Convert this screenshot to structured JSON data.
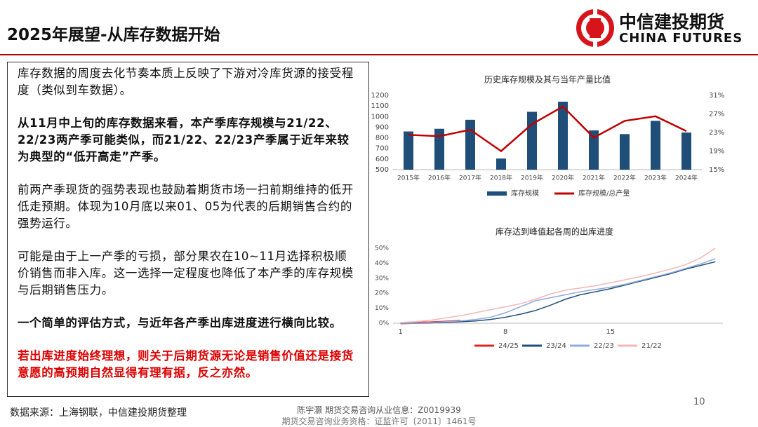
{
  "header": {
    "title": "2025年展望-从库存数据开始",
    "logo_cn": "中信建投期货",
    "logo_en": "CHINA FUTURES"
  },
  "paragraphs": [
    "库存数据的周度去化节奏本质上反映了下游对冷库货源的接受程度（类似到车数据）。",
    "从11月中上旬的库存数据来看，本产季库存规模与21/22、22/23两产季可能类似，而21/22、22/23产季属于近年来较为典型的“低开高走”产季。",
    "前两产季现货的强势表现也鼓励着期货市场一扫前期维持的低开低走预期。体现为10月底以来01、05为代表的后期销售合约的强势运行。",
    "可能是由于上一产季的亏损，部分果农在10~11月选择积极顺价销售而非入库。这一选择一定程度也降低了本产季的库存规模与后期销售压力。",
    "一个简单的评估方式，与近年各产季出库进度进行横向比较。",
    "若出库进度始终理想，则关于后期货源无论是销售价值还是接货意愿的高预期自然显得有理有据，反之亦然。"
  ],
  "charts": [
    {
      "type": "bar_line",
      "title": "历史库存规模及其与当年产量比值",
      "categories": [
        "2015年",
        "2016年",
        "2017年",
        "2018年",
        "2019年",
        "2020年",
        "2021年",
        "2022年",
        "2023年",
        "2024年"
      ],
      "series": [
        {
          "name": "库存规模",
          "color": "#1f4e79",
          "values": [
            860,
            885,
            970,
            605,
            1045,
            1140,
            870,
            835,
            960,
            850
          ]
        },
        {
          "name": "库存规模/总产量",
          "color": "#c00000",
          "axis": "y2",
          "values": [
            22.5,
            22.2,
            23.6,
            19.0,
            24.8,
            28.6,
            21.9,
            25.5,
            26.5,
            23.3
          ]
        }
      ],
      "ylim": [
        500,
        1200
      ],
      "yticks": [
        500,
        600,
        700,
        800,
        900,
        1000,
        1100,
        1200
      ],
      "y2lim": [
        15,
        31
      ],
      "y2ticks": [
        {
          "value": 15,
          "label": "15%"
        },
        {
          "value": 19,
          "label": "19%"
        },
        {
          "value": 23,
          "label": "23%"
        },
        {
          "value": 27,
          "label": "27%"
        },
        {
          "value": 31,
          "label": "31%"
        }
      ]
    },
    {
      "type": "line",
      "title": "库存达到峰值起各周的出库进度",
      "x": [
        1,
        2,
        3,
        4,
        5,
        6,
        7,
        8,
        9,
        10,
        11,
        12,
        13,
        14,
        15,
        16,
        17,
        18,
        19,
        20,
        21,
        22
      ],
      "series": [
        {
          "name": "24/25",
          "color": "#e0242b",
          "values": [
            0,
            0.3,
            0.5,
            1,
            1.5,
            null,
            null,
            null,
            null,
            null,
            null,
            null,
            null,
            null,
            null,
            null,
            null,
            null,
            null,
            null,
            null,
            null
          ]
        },
        {
          "name": "23/24",
          "color": "#1f4e79",
          "values": [
            0,
            0,
            0.3,
            0.6,
            1,
            1.5,
            2.5,
            4,
            6,
            8.5,
            12,
            16,
            19,
            21,
            23,
            25.5,
            28,
            30.5,
            33,
            36,
            38.5,
            41
          ]
        },
        {
          "name": "22/23",
          "color": "#8faadc",
          "values": [
            0,
            0,
            0.5,
            1,
            1.5,
            2.5,
            4,
            7,
            11,
            15,
            17,
            19,
            21,
            22.5,
            24,
            26,
            28.5,
            31,
            33.5,
            36.5,
            39.5,
            43
          ]
        },
        {
          "name": "21/22",
          "color": "#f4b6b6",
          "values": [
            0.5,
            1,
            2,
            3.5,
            5,
            7,
            9,
            11,
            13,
            16,
            19.5,
            22,
            23.5,
            25,
            27,
            29,
            31,
            33.5,
            36,
            39,
            43.5,
            50
          ]
        }
      ],
      "xlim": [
        0.5,
        22.5
      ],
      "xticks": [
        1,
        8,
        15
      ],
      "ylim": [
        0,
        50
      ],
      "yticks": [
        {
          "value": 0,
          "label": "0%"
        },
        {
          "value": 10,
          "label": "10%"
        },
        {
          "value": 20,
          "label": "20%"
        },
        {
          "value": 30,
          "label": "30%"
        },
        {
          "value": 40,
          "label": "40%"
        },
        {
          "value": 50,
          "label": "50%"
        }
      ]
    }
  ],
  "footer": {
    "source": "数据来源：上海钢联，中信建投期货整理",
    "author": "陈宇灏 期货交易咨询从业信息：Z0019939",
    "license": "期货交易咨询业务资格：证监许可〔2011〕1461号",
    "page": "10"
  }
}
